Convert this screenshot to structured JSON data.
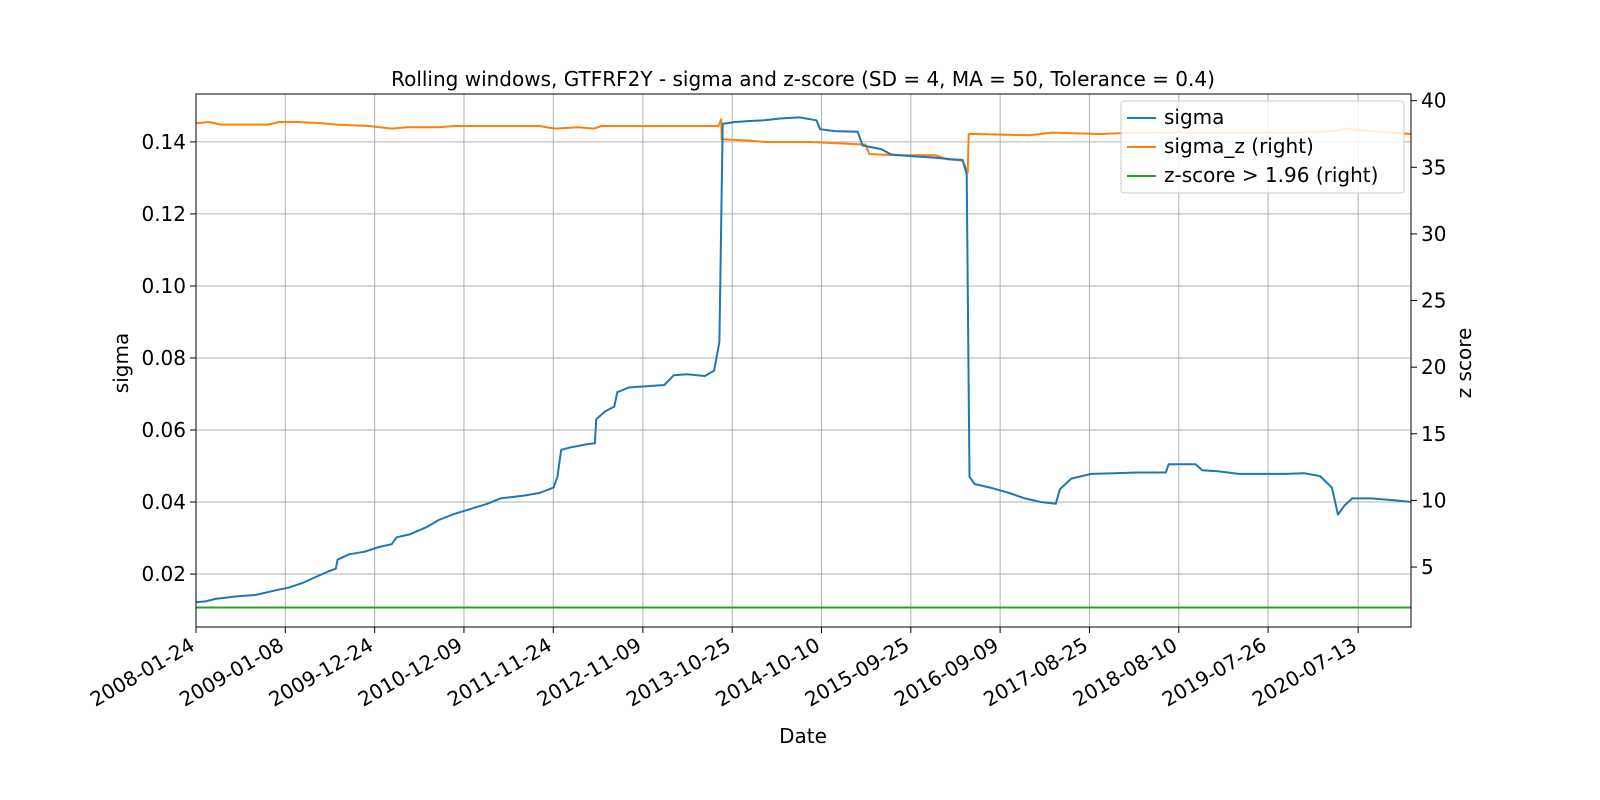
{
  "chart_data": {
    "type": "line",
    "title": "Rolling windows, GTFRF2Y - sigma and z-score (SD = 4, MA = 50, Tolerance  = 0.4)",
    "xlabel": "Date",
    "ylabel_left": "sigma",
    "ylabel_right": "z score",
    "x_ticks": [
      "2008-01-24",
      "2009-01-08",
      "2009-12-24",
      "2010-12-09",
      "2011-11-24",
      "2012-11-09",
      "2013-10-25",
      "2014-10-10",
      "2015-09-25",
      "2016-09-09",
      "2017-08-25",
      "2018-08-10",
      "2019-07-26",
      "2020-07-13"
    ],
    "xlim": [
      "2008-01-24",
      "2021-02-05"
    ],
    "y_left_ticks": [
      "0.02",
      "0.04",
      "0.06",
      "0.08",
      "0.10",
      "0.12",
      "0.14"
    ],
    "ylim_left": [
      0.0053,
      0.1533
    ],
    "y_right_ticks": [
      "5",
      "10",
      "15",
      "20",
      "25",
      "30",
      "35",
      "40"
    ],
    "ylim_right": [
      0.5,
      40.5
    ],
    "grid": true,
    "legend_position": "top-right",
    "legend": [
      "sigma",
      "sigma_z (right)",
      "z-score > 1.96 (right)"
    ],
    "colors": {
      "sigma": "#1f77b4",
      "sigma_z": "#ff7f0e",
      "threshold": "#2ca02c"
    },
    "series": [
      {
        "name": "sigma",
        "axis": "left",
        "points": [
          [
            "2008-01-24",
            0.0122
          ],
          [
            "2008-03-01",
            0.0124
          ],
          [
            "2008-04-10",
            0.0131
          ],
          [
            "2008-07-01",
            0.0138
          ],
          [
            "2008-09-15",
            0.0142
          ],
          [
            "2008-12-01",
            0.0155
          ],
          [
            "2009-01-20",
            0.0162
          ],
          [
            "2009-03-15",
            0.0175
          ],
          [
            "2009-05-10",
            0.0193
          ],
          [
            "2009-06-25",
            0.0207
          ],
          [
            "2009-07-25",
            0.0215
          ],
          [
            "2009-08-01",
            0.024
          ],
          [
            "2009-09-15",
            0.0255
          ],
          [
            "2009-11-15",
            0.0262
          ],
          [
            "2010-01-10",
            0.0275
          ],
          [
            "2010-03-01",
            0.0283
          ],
          [
            "2010-03-20",
            0.0302
          ],
          [
            "2010-05-10",
            0.031
          ],
          [
            "2010-07-15",
            0.033
          ],
          [
            "2010-09-01",
            0.035
          ],
          [
            "2010-11-01",
            0.0367
          ],
          [
            "2011-01-01",
            0.038
          ],
          [
            "2011-03-10",
            0.0395
          ],
          [
            "2011-05-01",
            0.041
          ],
          [
            "2011-08-01",
            0.0418
          ],
          [
            "2011-10-01",
            0.0425
          ],
          [
            "2011-11-25",
            0.044
          ],
          [
            "2011-12-10",
            0.047
          ],
          [
            "2011-12-25",
            0.0545
          ],
          [
            "2012-02-01",
            0.0552
          ],
          [
            "2012-04-01",
            0.056
          ],
          [
            "2012-05-05",
            0.0563
          ],
          [
            "2012-05-10",
            0.063
          ],
          [
            "2012-06-15",
            0.0652
          ],
          [
            "2012-07-20",
            0.0665
          ],
          [
            "2012-08-01",
            0.0705
          ],
          [
            "2012-09-15",
            0.0718
          ],
          [
            "2012-12-01",
            0.0722
          ],
          [
            "2013-02-01",
            0.0725
          ],
          [
            "2013-03-10",
            0.0752
          ],
          [
            "2013-05-01",
            0.0755
          ],
          [
            "2013-07-10",
            0.075
          ],
          [
            "2013-08-15",
            0.0765
          ],
          [
            "2013-09-05",
            0.0845
          ],
          [
            "2013-09-18",
            0.145
          ],
          [
            "2013-11-01",
            0.1455
          ],
          [
            "2014-01-01",
            0.1458
          ],
          [
            "2014-03-01",
            0.146
          ],
          [
            "2014-05-01",
            0.1465
          ],
          [
            "2014-07-15",
            0.1468
          ],
          [
            "2014-09-20",
            0.146
          ],
          [
            "2014-10-05",
            0.1435
          ],
          [
            "2014-12-01",
            0.143
          ],
          [
            "2015-03-01",
            0.1428
          ],
          [
            "2015-03-20",
            0.139
          ],
          [
            "2015-06-01",
            0.138
          ],
          [
            "2015-07-10",
            0.1365
          ],
          [
            "2015-10-01",
            0.136
          ],
          [
            "2016-01-01",
            0.1356
          ],
          [
            "2016-03-01",
            0.1352
          ],
          [
            "2016-04-15",
            0.135
          ],
          [
            "2016-05-01",
            0.131
          ],
          [
            "2016-05-12",
            0.047
          ],
          [
            "2016-06-01",
            0.045
          ],
          [
            "2016-08-01",
            0.044
          ],
          [
            "2016-10-15",
            0.0425
          ],
          [
            "2016-12-15",
            0.041
          ],
          [
            "2017-02-15",
            0.04
          ],
          [
            "2017-04-15",
            0.0395
          ],
          [
            "2017-05-01",
            0.0435
          ],
          [
            "2017-06-15",
            0.0465
          ],
          [
            "2017-09-01",
            0.0478
          ],
          [
            "2017-12-01",
            0.048
          ],
          [
            "2018-03-01",
            0.0482
          ],
          [
            "2018-06-20",
            0.0482
          ],
          [
            "2018-07-01",
            0.0505
          ],
          [
            "2018-10-15",
            0.0505
          ],
          [
            "2018-11-10",
            0.0488
          ],
          [
            "2019-01-15",
            0.0485
          ],
          [
            "2019-04-01",
            0.0478
          ],
          [
            "2019-07-15",
            0.0478
          ],
          [
            "2019-10-01",
            0.0478
          ],
          [
            "2019-12-15",
            0.048
          ],
          [
            "2020-02-15",
            0.0472
          ],
          [
            "2020-04-01",
            0.044
          ],
          [
            "2020-04-25",
            0.0365
          ],
          [
            "2020-05-20",
            0.039
          ],
          [
            "2020-06-20",
            0.041
          ],
          [
            "2020-09-01",
            0.041
          ],
          [
            "2020-12-01",
            0.0405
          ],
          [
            "2021-02-05",
            0.04
          ]
        ]
      },
      {
        "name": "sigma_z (right)",
        "axis": "right",
        "points": [
          [
            "2008-01-24",
            38.3
          ],
          [
            "2008-03-15",
            38.4
          ],
          [
            "2008-05-01",
            38.2
          ],
          [
            "2008-09-01",
            38.2
          ],
          [
            "2008-11-01",
            38.2
          ],
          [
            "2008-12-15",
            38.4
          ],
          [
            "2009-03-01",
            38.4
          ],
          [
            "2009-06-01",
            38.3
          ],
          [
            "2009-08-01",
            38.2
          ],
          [
            "2009-12-01",
            38.1
          ],
          [
            "2010-03-01",
            37.9
          ],
          [
            "2010-05-01",
            38.0
          ],
          [
            "2010-09-01",
            38.0
          ],
          [
            "2010-11-01",
            38.1
          ],
          [
            "2011-04-01",
            38.1
          ],
          [
            "2011-10-01",
            38.1
          ],
          [
            "2011-12-01",
            37.9
          ],
          [
            "2012-03-01",
            38.0
          ],
          [
            "2012-05-01",
            37.9
          ],
          [
            "2012-06-01",
            38.1
          ],
          [
            "2013-03-01",
            38.1
          ],
          [
            "2013-09-01",
            38.1
          ],
          [
            "2013-09-12",
            38.6
          ],
          [
            "2013-09-14",
            37.1
          ],
          [
            "2014-01-01",
            37.0
          ],
          [
            "2014-03-01",
            36.9
          ],
          [
            "2014-09-01",
            36.9
          ],
          [
            "2015-04-01",
            36.7
          ],
          [
            "2015-04-15",
            36.0
          ],
          [
            "2015-08-01",
            35.9
          ],
          [
            "2016-01-01",
            35.9
          ],
          [
            "2016-02-15",
            35.6
          ],
          [
            "2016-04-15",
            35.5
          ],
          [
            "2016-05-05",
            34.6
          ],
          [
            "2016-05-09",
            37.5
          ],
          [
            "2016-06-01",
            37.5
          ],
          [
            "2017-01-01",
            37.4
          ],
          [
            "2017-04-01",
            37.6
          ],
          [
            "2017-10-01",
            37.5
          ],
          [
            "2018-03-01",
            37.6
          ],
          [
            "2018-10-01",
            37.6
          ],
          [
            "2019-06-01",
            37.6
          ],
          [
            "2019-12-01",
            37.6
          ],
          [
            "2020-04-01",
            37.7
          ],
          [
            "2020-06-01",
            37.9
          ],
          [
            "2020-09-01",
            37.7
          ],
          [
            "2021-02-05",
            37.5
          ]
        ]
      },
      {
        "name": "z-score > 1.96 (right)",
        "axis": "right",
        "points": [
          [
            "2008-01-24",
            1.96
          ],
          [
            "2021-02-05",
            1.96
          ]
        ]
      }
    ]
  }
}
